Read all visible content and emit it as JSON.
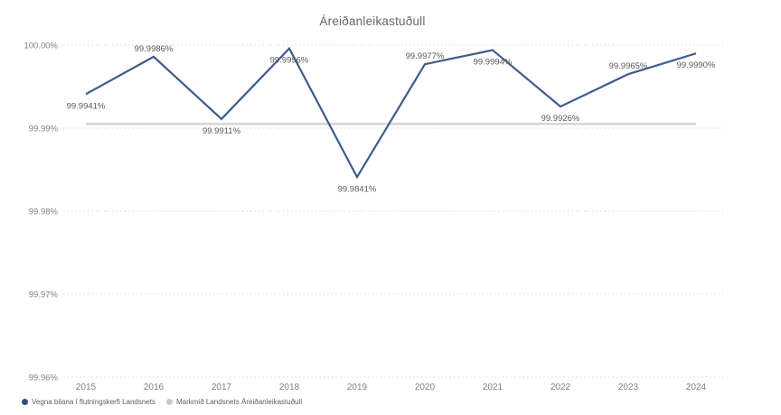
{
  "title": "Áreiðanleikastuðull",
  "colors": {
    "series_line": "#3e5c8b",
    "series_marker": "#31507e",
    "target_line": "#d4d4d4",
    "target_marker": "#c9c9c9",
    "gridline": "#d9d9d9",
    "axis_text": "#808080",
    "data_label_text": "#595959",
    "title_text": "#5f6a6d",
    "background": "#ffffff"
  },
  "chart_data": {
    "type": "line",
    "title": "Áreiðanleikastuðull",
    "categories": [
      "2015",
      "2016",
      "2017",
      "2018",
      "2019",
      "2020",
      "2021",
      "2022",
      "2023",
      "2024"
    ],
    "series": [
      {
        "name": "Vegna bilana í flutningskerfi Landsnets",
        "values": [
          99.9941,
          99.9986,
          99.9911,
          99.9996,
          99.9841,
          99.9977,
          99.9994,
          99.9926,
          99.9965,
          99.999
        ],
        "labels": [
          "99.9941%",
          "99.9986%",
          "99.9911%",
          "99.9996%",
          "99.9841%",
          "99.9977%",
          "99.9994%",
          "99.9926%",
          "99.9965%",
          "99.9990%"
        ],
        "label_positions": [
          "below",
          "above",
          "below",
          "below",
          "below",
          "above",
          "below",
          "below",
          "above",
          "below"
        ]
      },
      {
        "name": "Markmið Landsnets Áreiðanleikastuðull",
        "type": "constant-target-line",
        "value": 99.9905
      }
    ],
    "ylim": [
      99.96,
      100.0
    ],
    "y_ticks": [
      {
        "value": 100.0,
        "label": "100.00%"
      },
      {
        "value": 99.99,
        "label": "99.99%"
      },
      {
        "value": 99.98,
        "label": "99.98%"
      },
      {
        "value": 99.97,
        "label": "99.97%"
      },
      {
        "value": 99.96,
        "label": "99.96%"
      }
    ],
    "xlabel": "",
    "ylabel": "",
    "grid": "horizontal-dotted",
    "legend_position": "bottom-left"
  }
}
